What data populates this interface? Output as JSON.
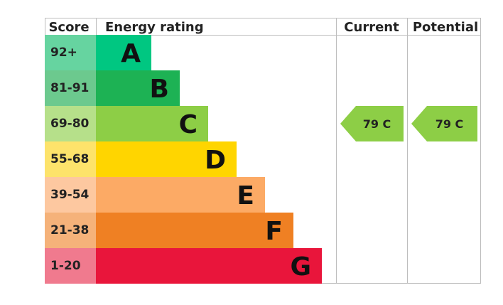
{
  "chart_data": {
    "type": "bar",
    "headers": {
      "score": "Score",
      "rating": "Energy rating",
      "current": "Current",
      "potential": "Potential"
    },
    "bands": [
      {
        "score": "92+",
        "letter": "A",
        "bar_color": "#00c781",
        "score_color": "#66d4a0"
      },
      {
        "score": "81-91",
        "letter": "B",
        "bar_color": "#1db254",
        "score_color": "#6cc98e"
      },
      {
        "score": "69-80",
        "letter": "C",
        "bar_color": "#8dce46",
        "score_color": "#b6e08a"
      },
      {
        "score": "55-68",
        "letter": "D",
        "bar_color": "#ffd500",
        "score_color": "#fde36b"
      },
      {
        "score": "39-54",
        "letter": "E",
        "bar_color": "#fcaa65",
        "score_color": "#fdc8a0"
      },
      {
        "score": "21-38",
        "letter": "F",
        "bar_color": "#ef8023",
        "score_color": "#f5b27a"
      },
      {
        "score": "1-20",
        "letter": "G",
        "bar_color": "#e9153b",
        "score_color": "#f07a8e"
      }
    ],
    "current": {
      "value": 79,
      "band": "C",
      "label": "79  C",
      "color": "#8dce46"
    },
    "potential": {
      "value": 79,
      "band": "C",
      "label": "79  C",
      "color": "#8dce46"
    }
  }
}
